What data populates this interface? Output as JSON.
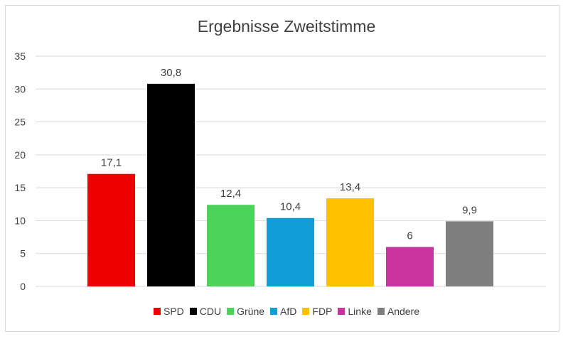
{
  "chart_data": {
    "type": "bar",
    "title": "Ergebnisse Zweitstimme",
    "categories": [
      "SPD",
      "CDU",
      "Grüne",
      "AfD",
      "FDP",
      "Linke",
      "Andere"
    ],
    "values": [
      17.1,
      30.8,
      12.4,
      10.4,
      13.4,
      6,
      9.9
    ],
    "data_labels": [
      "17,1",
      "30,8",
      "12,4",
      "10,4",
      "13,4",
      "6",
      "9,9"
    ],
    "colors": [
      "#ee0000",
      "#000000",
      "#4cd45a",
      "#0f9ed5",
      "#ffc000",
      "#c9339e",
      "#7f7f7f"
    ],
    "yticks": [
      "0",
      "5",
      "10",
      "15",
      "20",
      "25",
      "30",
      "35"
    ],
    "ylim": [
      0,
      35
    ],
    "xlabel": "",
    "ylabel": "",
    "grid": true,
    "legend_position": "bottom"
  }
}
